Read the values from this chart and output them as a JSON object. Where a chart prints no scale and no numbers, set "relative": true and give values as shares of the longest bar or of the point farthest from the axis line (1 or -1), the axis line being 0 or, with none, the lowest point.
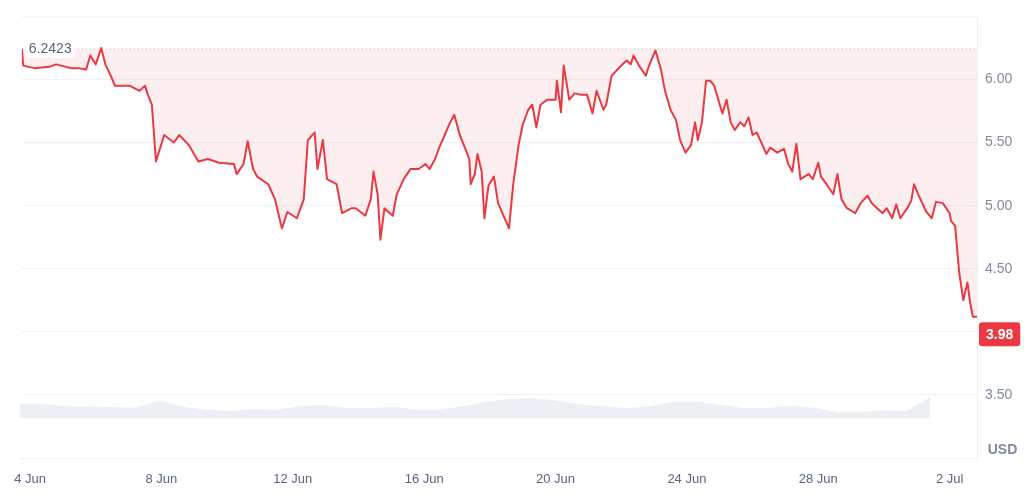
{
  "chart_data": [
    {
      "type": "line",
      "ylabel": "USD",
      "grid": "y",
      "x": [
        "--06-03T18:00",
        "--06-03T19:00",
        "--06-04T03:00",
        "--06-04T14:00",
        "--06-04T19:00",
        "--06-05T06:00",
        "--06-05T11:00",
        "--06-05T17:00",
        "--06-05T20:00",
        "--06-06T00:00",
        "--06-06T04:00",
        "--06-06T07:00",
        "--06-06T11:00",
        "--06-06T14:00",
        "--06-07T01:00",
        "--06-07T08:00",
        "--06-07T12:00",
        "--06-07T14:00",
        "--06-07T17:00",
        "--06-07T20:00",
        "--06-08T02:00",
        "--06-08T09:00",
        "--06-08T13:00",
        "--06-08T20:00",
        "--06-09T03:00",
        "--06-09T10:00",
        "--06-09T18:00",
        "--06-10T05:00",
        "--06-10T07:00",
        "--06-10T12:00",
        "--06-10T15:00",
        "--06-10T19:00",
        "--06-10T22:00",
        "--06-11T06:00",
        "--06-11T11:00",
        "--06-11T16:00",
        "--06-11T20:00",
        "--06-12T03:00",
        "--06-12T08:00",
        "--06-12T11:00",
        "--06-12T16:00",
        "--06-12T18:00",
        "--06-12T22:00",
        "--06-13T01:00",
        "--06-13T08:00",
        "--06-13T12:00",
        "--06-13T19:00",
        "--06-13T22:00",
        "--06-14T05:00",
        "--06-14T09:00",
        "--06-14T11:00",
        "--06-14T14:00",
        "--06-14T16:00",
        "--06-14T19:00",
        "--06-15T01:00",
        "--06-15T04:00",
        "--06-15T09:00",
        "--06-15T14:00",
        "--06-15T20:00",
        "--06-16T01:00",
        "--06-16T04:00",
        "--06-16T08:00",
        "--06-16T11:00",
        "--06-16T15:00",
        "--06-16T19:00",
        "--06-16T22:00",
        "--06-17T02:00",
        "--06-17T05:00",
        "--06-17T09:00",
        "--06-17T10:00",
        "--06-17T13:00",
        "--06-17T15:00",
        "--06-17T18:00",
        "--06-17T20:00",
        "--06-17T23:00",
        "--06-18T03:00",
        "--06-18T06:00",
        "--06-18T14:00",
        "--06-18T17:00",
        "--06-18T21:00",
        "--06-19T00:00",
        "--06-19T04:00",
        "--06-19T07:00",
        "--06-19T10:00",
        "--06-19T13:00",
        "--06-19T18:00",
        "--06-20T00:00",
        "--06-20T01:00",
        "--06-20T04:00",
        "--06-20T06:00",
        "--06-20T10:00",
        "--06-20T14:00",
        "--06-20T18:00",
        "--06-20T23:00",
        "--06-21T03:00",
        "--06-21T06:00",
        "--06-21T11:00",
        "--06-21T13:00",
        "--06-21T17:00",
        "--06-22T00:00",
        "--06-22T04:00",
        "--06-22T07:00",
        "--06-22T09:00",
        "--06-22T13:00",
        "--06-22T18:00",
        "--06-22T20:00",
        "--06-23T01:00",
        "--06-23T05:00",
        "--06-23T08:00",
        "--06-23T12:00",
        "--06-23T16:00",
        "--06-23T19:00",
        "--06-23T23:00",
        "--06-24T03:00",
        "--06-24T06:00",
        "--06-24T08:00",
        "--06-24T11:00",
        "--06-24T14:00",
        "--06-24T17:00",
        "--06-24T20:00",
        "--06-25T00:00",
        "--06-25T02:00",
        "--06-25T05:00",
        "--06-25T08:00",
        "--06-25T11:00",
        "--06-25T15:00",
        "--06-25T18:00",
        "--06-25T21:00",
        "--06-26T00:00",
        "--06-26T03:00",
        "--06-26T06:00",
        "--06-26T10:00",
        "--06-26T13:00",
        "--06-26T18:00",
        "--06-26T23:00",
        "--06-27T02:00",
        "--06-27T05:00",
        "--06-27T08:00",
        "--06-27T11:00",
        "--06-27T17:00",
        "--06-27T20:00",
        "--06-28T00:00",
        "--06-28T02:00",
        "--06-28T06:00",
        "--06-28T11:00",
        "--06-28T14:00",
        "--06-28T17:00",
        "--06-28T21:00",
        "--06-29T03:00",
        "--06-29T07:00",
        "--06-29T12:00",
        "--06-29T15:00",
        "--06-29T19:00",
        "--06-29T23:00",
        "--06-30T02:00",
        "--06-30T06:00",
        "--06-30T09:00",
        "--06-30T12:00",
        "--06-30T17:00",
        "--06-30T20:00",
        "--06-30T22:00",
        "--07-01T01:00",
        "--07-01T07:00",
        "--07-01T11:00",
        "--07-01T14:00",
        "--07-01T19:00",
        "--07-02T00:00",
        "--07-02T01:00",
        "--07-02T04:00",
        "--07-02T07:00",
        "--07-02T10:00",
        "--07-02T13:00",
        "--07-02T15:00",
        "--07-02T17:00",
        "--07-02T20:00"
      ],
      "series": [
        {
          "color": "#ea3943",
          "values": [
            6.24,
            6.11,
            6.09,
            6.1,
            6.12,
            6.09,
            6.09,
            6.08,
            6.19,
            6.12,
            6.25,
            6.12,
            6.03,
            5.95,
            5.95,
            5.91,
            5.95,
            5.88,
            5.8,
            5.35,
            5.56,
            5.5,
            5.56,
            5.48,
            5.35,
            5.37,
            5.34,
            5.33,
            5.25,
            5.33,
            5.51,
            5.29,
            5.23,
            5.17,
            5.05,
            4.82,
            4.95,
            4.9,
            5.05,
            5.52,
            5.58,
            5.29,
            5.52,
            5.21,
            5.17,
            4.94,
            4.98,
            4.98,
            4.92,
            5.05,
            5.27,
            5.09,
            4.73,
            4.98,
            4.92,
            5.09,
            5.21,
            5.29,
            5.29,
            5.33,
            5.29,
            5.37,
            5.46,
            5.56,
            5.66,
            5.72,
            5.56,
            5.48,
            5.37,
            5.17,
            5.25,
            5.41,
            5.27,
            4.9,
            5.16,
            5.23,
            5.02,
            4.82,
            5.16,
            5.48,
            5.64,
            5.76,
            5.8,
            5.62,
            5.8,
            5.84,
            5.84,
            5.99,
            5.74,
            6.11,
            5.84,
            5.89,
            5.88,
            5.88,
            5.73,
            5.91,
            5.76,
            5.8,
            6.03,
            6.11,
            6.15,
            6.12,
            6.19,
            6.11,
            6.03,
            6.1,
            6.23,
            6.08,
            5.91,
            5.76,
            5.68,
            5.52,
            5.42,
            5.48,
            5.66,
            5.52,
            5.66,
            5.99,
            5.99,
            5.95,
            5.8,
            5.73,
            5.84,
            5.66,
            5.6,
            5.66,
            5.63,
            5.7,
            5.56,
            5.58,
            5.51,
            5.41,
            5.46,
            5.42,
            5.45,
            5.33,
            5.27,
            5.49,
            5.21,
            5.25,
            5.21,
            5.34,
            5.23,
            5.17,
            5.09,
            5.25,
            5.05,
            4.98,
            4.94,
            5.02,
            5.08,
            5.02,
            4.98,
            4.94,
            4.98,
            4.9,
            5.01,
            4.9,
            4.98,
            5.04,
            5.17,
            5.09,
            4.95,
            4.9,
            5.03,
            5.02,
            4.94,
            4.88,
            4.84,
            4.47,
            4.25,
            4.39,
            4.23,
            4.12,
            4.12
          ]
        }
      ],
      "xlim": [
        "--06-03T18:00",
        "--07-02T20:00"
      ],
      "xticks": [
        {
          "value": "--06-04",
          "label": "4 Jun"
        },
        {
          "value": "--06-08",
          "label": "8 Jun"
        },
        {
          "value": "--06-12",
          "label": "12 Jun"
        },
        {
          "value": "--06-16",
          "label": "16 Jun"
        },
        {
          "value": "--06-20",
          "label": "20 Jun"
        },
        {
          "value": "--06-24",
          "label": "24 Jun"
        },
        {
          "value": "--06-28",
          "label": "28 Jun"
        },
        {
          "value": "--07-02",
          "label": "2 Jul"
        }
      ],
      "ylim": [
        3.0,
        6.5
      ],
      "yticks": [
        {
          "value": 3.5,
          "label": "3.50"
        },
        {
          "value": 4,
          "label": null
        },
        {
          "value": 4.5,
          "label": "4.50"
        },
        {
          "value": 5,
          "label": "5.00"
        },
        {
          "value": 5.5,
          "label": "5.50"
        },
        {
          "value": 6,
          "label": "6.00"
        }
      ],
      "ref_lines": [
        {
          "axis": "y",
          "value": 6.2423,
          "label": "6.2423",
          "line_style": "dotted",
          "color": "#a6b0c3"
        }
      ],
      "annotations": [
        {
          "text": "3.98",
          "y": 3.98
        }
      ]
    },
    {
      "type": "area",
      "relative": true,
      "color": "#eceff3",
      "categories": [
        null,
        null,
        null,
        null,
        null,
        null,
        null,
        null,
        null,
        null,
        null,
        null,
        null,
        null,
        null,
        null,
        null,
        null,
        null,
        null,
        null,
        null,
        null,
        null,
        null,
        null,
        null,
        null,
        null,
        null,
        null,
        null,
        null,
        null,
        null,
        null,
        null,
        null,
        null,
        null
      ],
      "values": [
        0.68,
        0.68,
        0.55,
        0.54,
        0.52,
        0.49,
        0.84,
        0.53,
        0.39,
        0.31,
        0.42,
        0.39,
        0.56,
        0.63,
        0.47,
        0.47,
        0.53,
        0.39,
        0.4,
        0.56,
        0.79,
        0.92,
        0.97,
        0.84,
        0.66,
        0.55,
        0.47,
        0.56,
        0.79,
        0.79,
        0.63,
        0.47,
        0.47,
        0.58,
        0.49,
        0.28,
        0.28,
        0.35,
        0.32,
        1
      ]
    }
  ]
}
